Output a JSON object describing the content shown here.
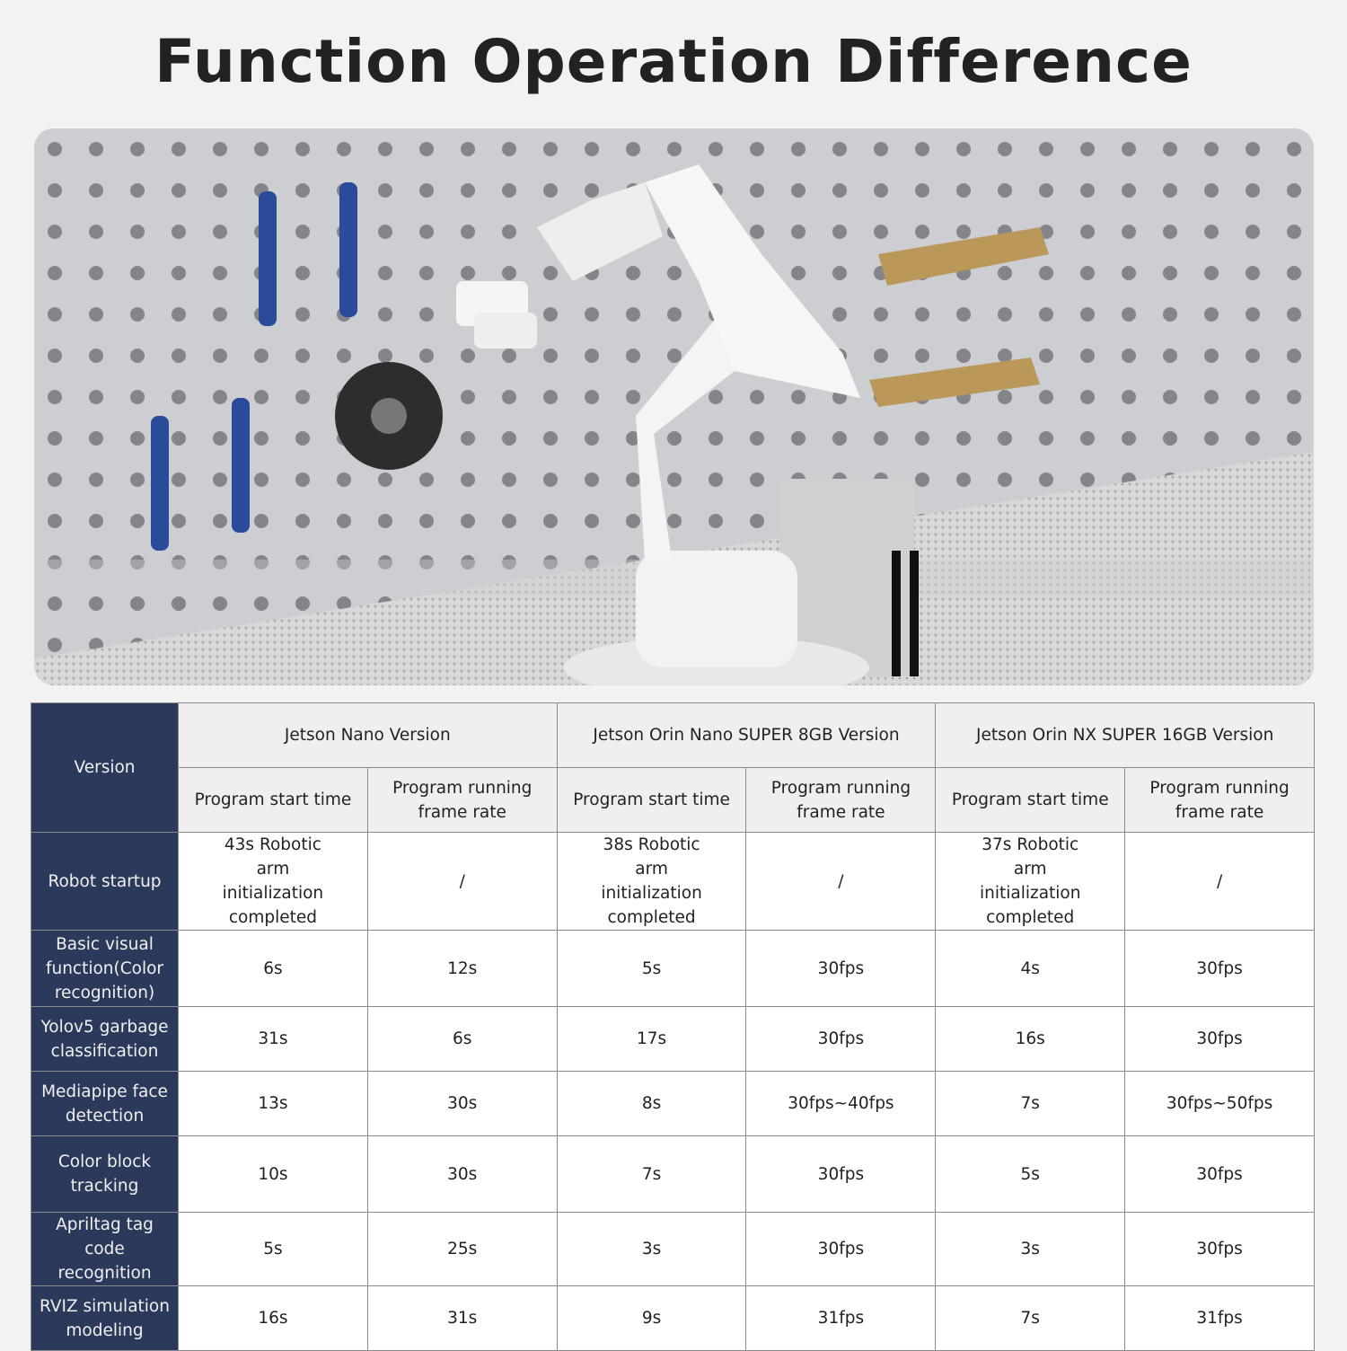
{
  "title": "Function Operation Difference",
  "table": {
    "corner": "Version",
    "versions": [
      "Jetson Nano Version",
      "Jetson Orin Nano SUPER 8GB Version",
      "Jetson Orin NX SUPER 16GB Version"
    ],
    "subheaders": [
      "Program start time",
      "Program running frame rate"
    ],
    "rows": [
      {
        "label": "Robot startup",
        "cells": [
          "43s Robotic arm initialization completed",
          "/",
          "38s Robotic arm initialization completed",
          "/",
          "37s Robotic arm initialization completed",
          "/"
        ]
      },
      {
        "label": "Basic visual function(Color recognition)",
        "cells": [
          "6s",
          "12s",
          "5s",
          "30fps",
          "4s",
          "30fps"
        ]
      },
      {
        "label": "Yolov5 garbage classification",
        "cells": [
          "31s",
          "6s",
          "17s",
          "30fps",
          "16s",
          "30fps"
        ]
      },
      {
        "label": "Mediapipe face detection",
        "cells": [
          "13s",
          "30s",
          "8s",
          "30fps~40fps",
          "7s",
          "30fps~50fps"
        ]
      },
      {
        "label": "Color block tracking",
        "cells": [
          "10s",
          "30s",
          "7s",
          "30fps",
          "5s",
          "30fps"
        ]
      },
      {
        "label": "Apriltag tag code recognition",
        "cells": [
          "5s",
          "25s",
          "3s",
          "30fps",
          "3s",
          "30fps"
        ]
      },
      {
        "label": "RVIZ simulation modeling",
        "cells": [
          "16s",
          "31s",
          "9s",
          "31fps",
          "7s",
          "31fps"
        ]
      }
    ]
  },
  "colors": {
    "header_dark": "#2b3a5a",
    "header_light": "#efefef"
  }
}
